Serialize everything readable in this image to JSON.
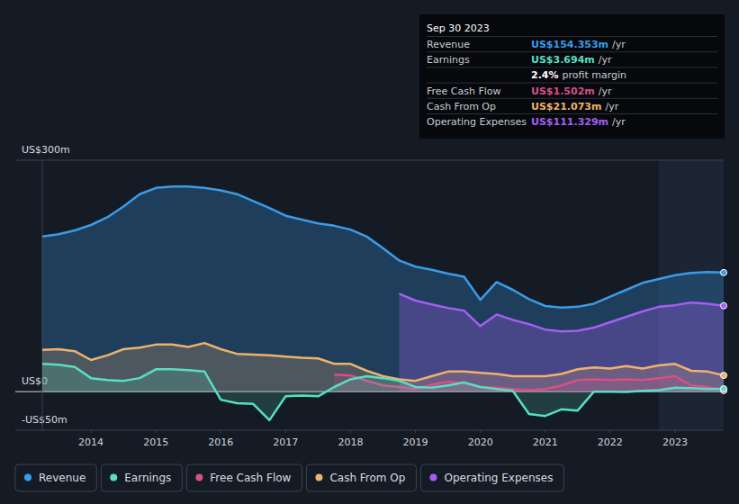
{
  "chart_data": {
    "type": "area",
    "x": [
      2013.25,
      2013.5,
      2013.75,
      2014,
      2014.25,
      2014.5,
      2014.75,
      2015,
      2015.25,
      2015.5,
      2015.75,
      2016,
      2016.25,
      2016.5,
      2016.75,
      2017,
      2017.25,
      2017.5,
      2017.75,
      2018,
      2018.25,
      2018.5,
      2018.75,
      2019,
      2019.25,
      2019.5,
      2019.75,
      2020,
      2020.25,
      2020.5,
      2020.75,
      2021,
      2021.25,
      2021.5,
      2021.75,
      2022,
      2022.25,
      2022.5,
      2022.75,
      2023,
      2023.25,
      2023.5,
      2023.75
    ],
    "xlim": [
      2013.25,
      2023.75
    ],
    "xticks": [
      2014,
      2015,
      2016,
      2017,
      2018,
      2019,
      2020,
      2021,
      2022,
      2023
    ],
    "ylim": [
      -50,
      300
    ],
    "yticks": [
      {
        "value": -50,
        "label": "-US$50m"
      },
      {
        "value": 0,
        "label": "US$0"
      },
      {
        "value": 300,
        "label": "US$300m"
      }
    ],
    "grid": true,
    "legend": "bottom-left",
    "series": [
      {
        "name": "Revenue",
        "color": "#3a9ce8",
        "values": [
          201,
          204,
          209,
          216,
          226,
          240,
          256,
          264,
          266,
          266,
          264,
          261,
          256,
          247,
          238,
          228,
          223,
          218,
          215,
          210,
          201,
          186,
          170,
          162,
          158,
          153,
          149,
          119,
          142,
          132,
          120,
          111,
          109,
          110,
          114,
          123,
          132,
          141,
          146,
          151,
          154,
          155,
          154.353
        ]
      },
      {
        "name": "Earnings",
        "color": "#58dfc0",
        "values": [
          36,
          35,
          32,
          17.5,
          15,
          14,
          17.5,
          29,
          29,
          28,
          26,
          -10.5,
          -15,
          -16,
          -37,
          -6,
          -5,
          -6,
          6,
          16,
          20,
          17.5,
          14,
          6,
          5,
          8,
          12,
          6,
          3.5,
          1,
          -29,
          -31.5,
          -23,
          -24.5,
          0,
          0,
          -0.5,
          1,
          2,
          5,
          4.5,
          3.5,
          3.694
        ]
      },
      {
        "name": "Free Cash Flow",
        "color": "#d6508a",
        "values": [
          null,
          null,
          null,
          null,
          null,
          null,
          null,
          null,
          null,
          null,
          null,
          null,
          null,
          null,
          null,
          null,
          null,
          null,
          22,
          21,
          14,
          8,
          6,
          3.5,
          9,
          13,
          10.5,
          6,
          5,
          3.5,
          2,
          3.5,
          8,
          15,
          16,
          15,
          16,
          15,
          17.5,
          20,
          8,
          6,
          1.502
        ]
      },
      {
        "name": "Cash From Op",
        "color": "#eeb26c",
        "values": [
          54,
          55,
          52.5,
          41,
          47,
          55,
          57,
          61,
          61,
          58,
          63,
          55,
          49,
          48,
          47,
          45.5,
          44,
          43,
          36,
          36,
          27,
          20,
          16,
          14,
          20,
          26,
          26,
          24.5,
          23,
          20,
          20,
          20,
          23,
          29,
          31.5,
          30,
          33,
          30,
          34,
          36,
          27,
          26,
          21.073
        ]
      },
      {
        "name": "Operating Expenses",
        "color": "#a45ef2",
        "values": [
          null,
          null,
          null,
          null,
          null,
          null,
          null,
          null,
          null,
          null,
          null,
          null,
          null,
          null,
          null,
          null,
          null,
          null,
          null,
          null,
          null,
          null,
          127,
          118,
          113,
          108.5,
          105,
          85,
          100,
          93,
          87.5,
          80.5,
          78,
          79,
          83,
          90,
          97,
          104,
          110,
          112,
          115.5,
          114,
          111.329
        ]
      }
    ],
    "tooltip": {
      "title": "Sep 30 2023",
      "rows": [
        {
          "label": "Revenue",
          "value": "US$154.353m",
          "unit": "/yr",
          "color": "#3a9ce8"
        },
        {
          "label": "Earnings",
          "value": "US$3.694m",
          "unit": "/yr",
          "color": "#58dfc0"
        },
        {
          "label": "",
          "value": "2.4%",
          "unit": "profit margin",
          "color": "#ffffff"
        },
        {
          "label": "Free Cash Flow",
          "value": "US$1.502m",
          "unit": "/yr",
          "color": "#d6508a"
        },
        {
          "label": "Cash From Op",
          "value": "US$21.073m",
          "unit": "/yr",
          "color": "#eeb26c"
        },
        {
          "label": "Operating Expenses",
          "value": "US$111.329m",
          "unit": "/yr",
          "color": "#a45ef2"
        }
      ]
    }
  }
}
